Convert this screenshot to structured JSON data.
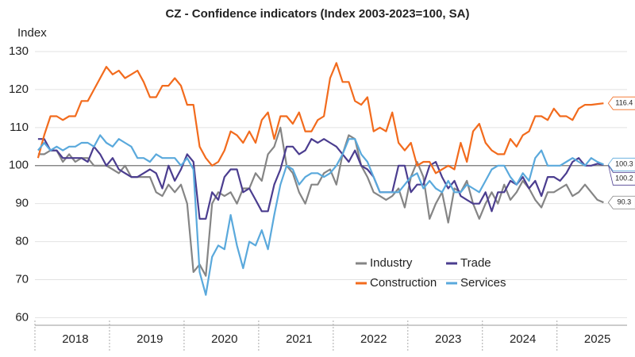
{
  "chart_data": {
    "type": "line",
    "title": "CZ - Confidence indicators (Index 2003-2023=100, SA)",
    "y_label": "Index",
    "categories": [
      null,
      null,
      null,
      null,
      null,
      null,
      "2018",
      null,
      null,
      null,
      null,
      null,
      null,
      null,
      null,
      null,
      null,
      null,
      "2019",
      null,
      null,
      null,
      null,
      null,
      null,
      null,
      null,
      null,
      null,
      null,
      "2020",
      null,
      null,
      null,
      null,
      null,
      null,
      null,
      null,
      null,
      null,
      null,
      "2021",
      null,
      null,
      null,
      null,
      null,
      null,
      null,
      null,
      null,
      null,
      null,
      "2022",
      null,
      null,
      null,
      null,
      null,
      null,
      null,
      null,
      null,
      null,
      null,
      "2023",
      null,
      null,
      null,
      null,
      null,
      null,
      null,
      null,
      null,
      null,
      null,
      "2024",
      null,
      null,
      null,
      null,
      null,
      null,
      null,
      null,
      null,
      null,
      null,
      "2025",
      null
    ],
    "ylim": [
      58,
      130
    ],
    "yticks": [
      60,
      70,
      80,
      90,
      100,
      110,
      120,
      130
    ],
    "reference_line": 100,
    "grid": true,
    "series": [
      {
        "name": "Industry",
        "color": "#858585",
        "end_label": "90.3",
        "values": [
          103,
          103,
          104,
          104,
          101,
          103,
          101,
          102,
          102,
          100,
          100,
          100,
          99,
          98,
          100,
          97,
          97,
          97,
          97,
          93,
          92,
          95,
          93,
          95,
          90,
          72,
          74,
          71,
          90,
          93,
          92,
          93,
          90,
          94,
          94,
          98,
          96,
          103,
          105,
          110,
          100,
          98,
          93,
          90,
          95,
          95,
          98,
          99,
          95,
          103,
          108,
          107,
          100,
          97,
          93,
          92,
          91,
          92,
          94,
          89,
          97,
          101,
          97,
          86,
          90,
          93,
          85,
          94,
          93,
          96,
          90,
          86,
          90,
          93,
          90,
          95,
          91,
          93,
          96,
          94,
          91,
          89,
          93,
          93,
          94,
          95,
          92,
          93,
          95,
          93,
          91,
          90.3
        ]
      },
      {
        "name": "Trade",
        "color": "#4b3d8f",
        "end_label": "100.2",
        "values": [
          107,
          107,
          104,
          104,
          102,
          102,
          102,
          102,
          101,
          105,
          103,
          100,
          102,
          99,
          98,
          97,
          97,
          98,
          99,
          98,
          94,
          100,
          96,
          99,
          103,
          101,
          86,
          86,
          93,
          91,
          97,
          99,
          99,
          93,
          94,
          91,
          88,
          88,
          95,
          99,
          105,
          105,
          103,
          104,
          107,
          106,
          107,
          106,
          105,
          103,
          101,
          104,
          100,
          99,
          97,
          93,
          93,
          93,
          100,
          100,
          93,
          95,
          95,
          100,
          101,
          97,
          94,
          96,
          92,
          91,
          90,
          90,
          93,
          88,
          93,
          93,
          96,
          95,
          97,
          94,
          96,
          92,
          97,
          97,
          96,
          98,
          101,
          102,
          100,
          100,
          100.5,
          100.2
        ]
      },
      {
        "name": "Construction",
        "color": "#f26b1d",
        "end_label": "116.4",
        "values": [
          102,
          108,
          113,
          113,
          112,
          113,
          113,
          117,
          117,
          120,
          123,
          126,
          124,
          125,
          123,
          124,
          125,
          122,
          118,
          118,
          121,
          121,
          123,
          121,
          116,
          116,
          105,
          102,
          100,
          101,
          104,
          109,
          108,
          106,
          109,
          106,
          112,
          114,
          107,
          113,
          113,
          111,
          114,
          109,
          109,
          112,
          113,
          123,
          127,
          122,
          122,
          117,
          116,
          118,
          109,
          110,
          109,
          114,
          106,
          104,
          106,
          100,
          101,
          101,
          98,
          99,
          100,
          99,
          106,
          101,
          109,
          111,
          106,
          104,
          103,
          103,
          107,
          105,
          108,
          109,
          113,
          113,
          112,
          115,
          113,
          113,
          112,
          115,
          116,
          116,
          116.2,
          116.4
        ]
      },
      {
        "name": "Services",
        "color": "#5aa9dc",
        "end_label": "100.3",
        "values": [
          104,
          106,
          104,
          105,
          104,
          105,
          105,
          106,
          106,
          105,
          108,
          106,
          105,
          107,
          106,
          105,
          102,
          102,
          101,
          103,
          102,
          102,
          102,
          100,
          102,
          99,
          72,
          66,
          76,
          79,
          78,
          87,
          79,
          73,
          80,
          79,
          83,
          78,
          87,
          95,
          100,
          99,
          95,
          97,
          98,
          98,
          97,
          98,
          100,
          103,
          107,
          107,
          103,
          101,
          97,
          93,
          93,
          93,
          93,
          95,
          97,
          98,
          94,
          96,
          94,
          93,
          96,
          93,
          93,
          95,
          94,
          93,
          96,
          99,
          100,
          100,
          97,
          95,
          98,
          96,
          102,
          104,
          100,
          100,
          100,
          101,
          102,
          101,
          100,
          102,
          101,
          100.3
        ]
      }
    ]
  }
}
